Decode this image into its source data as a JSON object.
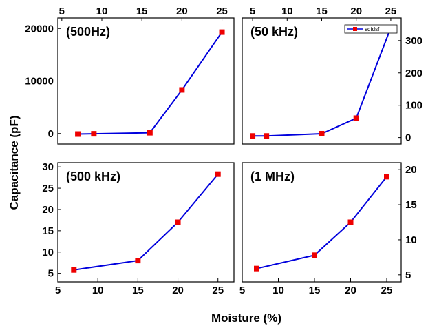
{
  "figure": {
    "ylabel": "Capacitance (pF)",
    "xlabel": "Moisture (%)"
  },
  "colors": {
    "line": "#0000dd",
    "marker": "#ee0000",
    "axis": "#000000"
  },
  "chart_data": [
    {
      "type": "line",
      "title": "(500Hz)",
      "x": [
        7,
        9,
        16,
        20,
        25
      ],
      "y": [
        -100,
        -50,
        150,
        8300,
        19300
      ],
      "xlim": [
        4.5,
        26.5
      ],
      "ylim": [
        -2000,
        22000
      ],
      "xticks": [
        5,
        10,
        15,
        20,
        25
      ],
      "xtick_labels": [
        "5",
        "10",
        "15",
        "20",
        "25"
      ],
      "xticks_position": "top",
      "yticks": [
        0,
        10000,
        20000
      ],
      "ytick_labels": [
        "0",
        "10000",
        "20000"
      ],
      "yticks_position": "left",
      "legend": null,
      "grid": false
    },
    {
      "type": "line",
      "title": "(50 kHz)",
      "x": [
        5,
        7,
        15,
        20,
        25
      ],
      "y": [
        5,
        5,
        12,
        60,
        340
      ],
      "xlim": [
        3.5,
        26.5
      ],
      "ylim": [
        -20,
        370
      ],
      "xticks": [
        5,
        10,
        15,
        20,
        25
      ],
      "xtick_labels": [
        "5",
        "10",
        "15",
        "20",
        "25"
      ],
      "xticks_position": "top",
      "yticks": [
        0,
        100,
        200,
        300
      ],
      "ytick_labels": [
        "0",
        "100",
        "200",
        "300"
      ],
      "yticks_position": "right",
      "legend": {
        "label": "sdfdsf",
        "position": "top-right"
      },
      "grid": false
    },
    {
      "type": "line",
      "title": "(500 kHz)",
      "x": [
        7,
        15,
        20,
        25
      ],
      "y": [
        5.8,
        8,
        17,
        28.3
      ],
      "xlim": [
        5,
        27
      ],
      "ylim": [
        3,
        31
      ],
      "xticks": [
        5,
        10,
        15,
        20,
        25
      ],
      "xtick_labels": [
        "5",
        "10",
        "15",
        "20",
        "25"
      ],
      "xticks_position": "bottom",
      "yticks": [
        5,
        10,
        15,
        20,
        25,
        30
      ],
      "ytick_labels": [
        "5",
        "10",
        "15",
        "20",
        "25",
        "30"
      ],
      "yticks_position": "left",
      "legend": null,
      "grid": false
    },
    {
      "type": "line",
      "title": "(1 MHz)",
      "x": [
        7,
        15,
        20,
        25
      ],
      "y": [
        5.9,
        7.8,
        12.5,
        19
      ],
      "xlim": [
        5,
        27
      ],
      "ylim": [
        4,
        21
      ],
      "xticks": [
        5,
        10,
        15,
        20,
        25
      ],
      "xtick_labels": [
        "5",
        "10",
        "15",
        "20",
        "25"
      ],
      "xticks_position": "bottom",
      "yticks": [
        5,
        10,
        15,
        20
      ],
      "ytick_labels": [
        "5",
        "10",
        "15",
        "20"
      ],
      "yticks_position": "right",
      "legend": null,
      "grid": false
    }
  ]
}
